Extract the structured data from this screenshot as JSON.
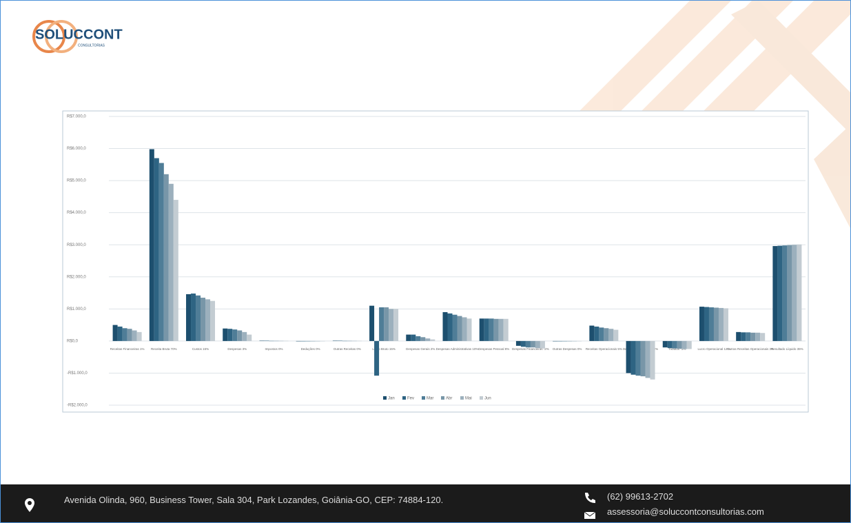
{
  "header": {
    "logo_text": "SOLUCCONT",
    "logo_sub": "CONSULTORIAS"
  },
  "chart_data": {
    "type": "bar",
    "categories": [
      "Receitas Financeiras 1%",
      "Receita Bruta 70%",
      "Custos 15%",
      "Despesas 3%",
      "Impostos 0%",
      "Deduções 0%",
      "Outras Receitas 0%",
      "Lucro Bruto 15%",
      "Despesas Gerais 2%",
      "Despesas Administrativas 10%",
      "Despesas Pessoal 8%",
      "Despesas Financeiras -2%",
      "Outras Despesas 0%",
      "Receitas Operacionais 5%",
      "Despesas Variáveis -12%",
      "Tributos -3%",
      "Lucro Operacional 12%",
      "Outras Receitas Operacionais 3%",
      "Resultado Líquido 35%"
    ],
    "series": [
      {
        "name": "Jan",
        "color": "#1d4f6e",
        "values": [
          500,
          5980,
          1460,
          390,
          10,
          0,
          10,
          1100,
          200,
          900,
          700,
          -150,
          0,
          480,
          -1000,
          -200,
          1070,
          280,
          2960
        ]
      },
      {
        "name": "Fev",
        "color": "#2e6483",
        "values": [
          450,
          5700,
          1480,
          380,
          10,
          0,
          10,
          -1080,
          200,
          860,
          700,
          -180,
          0,
          450,
          -1050,
          -220,
          1060,
          270,
          2970
        ]
      },
      {
        "name": "Mar",
        "color": "#4f7d97",
        "values": [
          400,
          5550,
          1420,
          360,
          5,
          0,
          5,
          1050,
          150,
          820,
          700,
          -200,
          0,
          420,
          -1080,
          -230,
          1050,
          270,
          2980
        ]
      },
      {
        "name": "Abr",
        "color": "#7896a8",
        "values": [
          380,
          5200,
          1350,
          330,
          5,
          0,
          5,
          1050,
          120,
          780,
          690,
          -200,
          0,
          400,
          -1100,
          -240,
          1040,
          260,
          2990
        ]
      },
      {
        "name": "Mai",
        "color": "#9cb0bd",
        "values": [
          330,
          4900,
          1300,
          280,
          5,
          0,
          5,
          1000,
          80,
          740,
          690,
          -220,
          0,
          380,
          -1150,
          -250,
          1030,
          260,
          3000
        ]
      },
      {
        "name": "Jun",
        "color": "#c3ccd2",
        "values": [
          280,
          4400,
          1250,
          200,
          5,
          0,
          5,
          1000,
          50,
          700,
          690,
          -230,
          0,
          350,
          -1200,
          -250,
          1020,
          250,
          3010
        ]
      }
    ],
    "ylim": [
      -2000,
      7000
    ],
    "yticks": [
      {
        "value": -2000,
        "label": "-R$2.000,0"
      },
      {
        "value": -1000,
        "label": "-R$1.000,0"
      },
      {
        "value": 0,
        "label": "R$0,0"
      },
      {
        "value": 1000,
        "label": "R$1.000,0"
      },
      {
        "value": 2000,
        "label": "R$2.000,0"
      },
      {
        "value": 3000,
        "label": "R$3.000,0"
      },
      {
        "value": 4000,
        "label": "R$4.000,0"
      },
      {
        "value": 5000,
        "label": "R$5.000,0"
      },
      {
        "value": 6000,
        "label": "R$6.000,0"
      },
      {
        "value": 7000,
        "label": "R$7.000,0"
      }
    ],
    "grid": true,
    "legend": "bottom"
  },
  "footer": {
    "address": "Avenida Olinda, 960, Business Tower, Sala 304, Park Lozandes, Goiânia-GO, CEP: 74884-120.",
    "phone": "(62) 99613-2702",
    "email": "assessoria@soluccontconsultorias.com"
  }
}
